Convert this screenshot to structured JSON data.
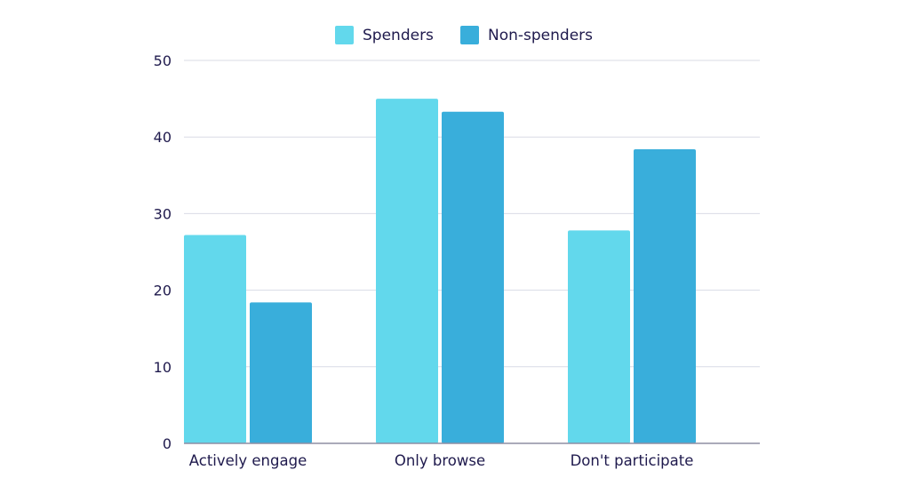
{
  "chart_data": {
    "type": "bar",
    "title": "",
    "xlabel": "",
    "ylabel": "",
    "categories": [
      "Actively engage",
      "Only browse",
      "Don't participate"
    ],
    "series": [
      {
        "name": "Spenders",
        "values": [
          27.2,
          45.0,
          27.8
        ],
        "color": "#62d8ec"
      },
      {
        "name": "Non-spenders",
        "values": [
          18.4,
          43.3,
          38.4
        ],
        "color": "#39aedb"
      }
    ],
    "ylim": [
      0,
      50
    ],
    "yticks": [
      0,
      10,
      20,
      30,
      40,
      50
    ],
    "grid": true,
    "legend_position": "top-center"
  }
}
